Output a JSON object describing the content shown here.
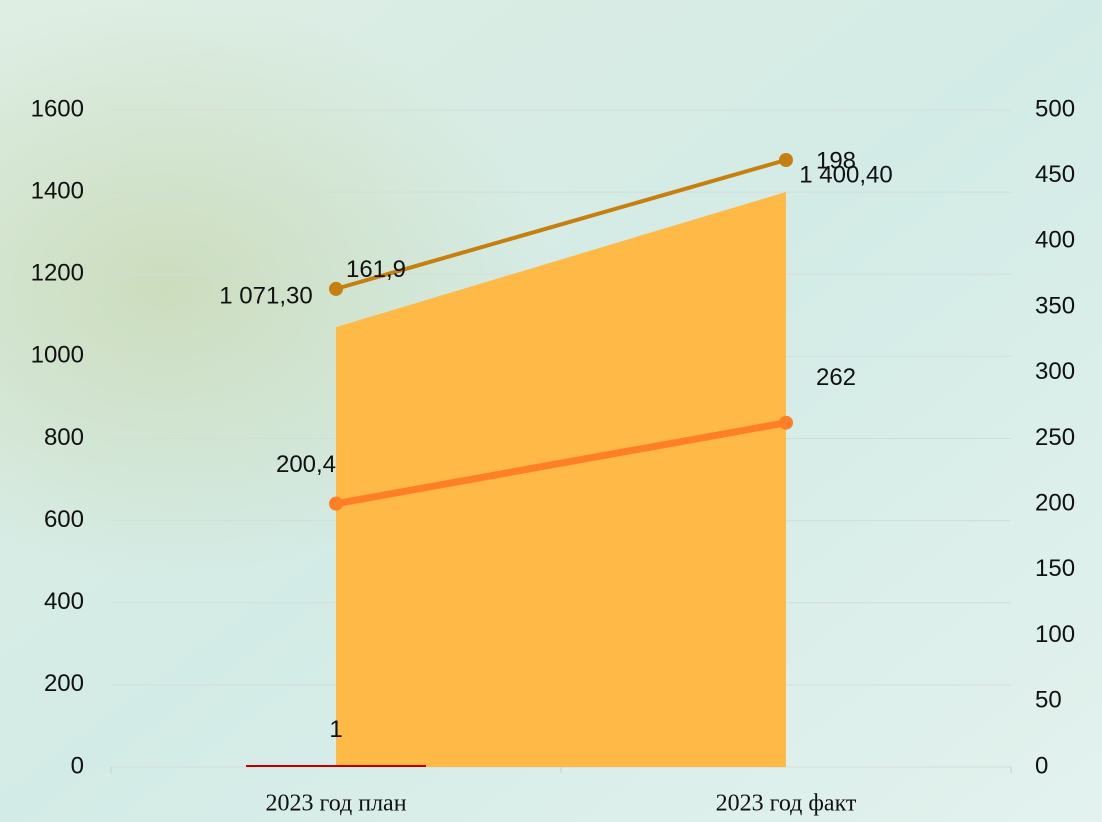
{
  "chart_data": {
    "type": "combo",
    "categories": [
      "2023 год план",
      "2023 год факт"
    ],
    "ylim": [
      0,
      1600
    ],
    "yticks": [
      0,
      200,
      400,
      600,
      800,
      1000,
      1200,
      1400,
      1600
    ],
    "y2lim": [
      0,
      500
    ],
    "y2ticks": [
      0,
      50,
      100,
      150,
      200,
      250,
      300,
      350,
      400,
      450,
      500
    ],
    "y3lim": [
      28,
      212
    ],
    "grid": true,
    "series": [
      {
        "type": "area",
        "color": "#FFB946",
        "values": [
          1071.3,
          1400.4
        ],
        "value_labels": [
          "1 071,30",
          "1 400,40"
        ]
      },
      {
        "type": "bar",
        "color": "#C00000",
        "values": [
          1,
          null
        ],
        "value_labels": [
          "1",
          null
        ]
      },
      {
        "type": "line",
        "axis": "y3",
        "color": "#C5800F",
        "values": [
          161.9,
          198
        ],
        "value_labels": [
          "161,9",
          "198"
        ]
      },
      {
        "type": "line",
        "axis": "y2",
        "color": "#FF7F27",
        "values": [
          200.4,
          262
        ],
        "value_labels": [
          "200,4",
          "262"
        ]
      }
    ]
  }
}
